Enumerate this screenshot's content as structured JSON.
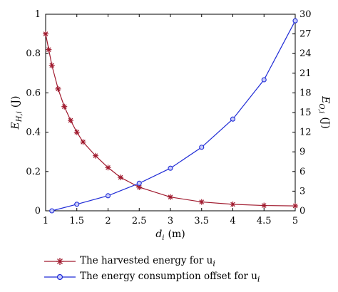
{
  "chart_data": {
    "type": "line",
    "title": "",
    "xlabel": {
      "main": "d",
      "sub": "i",
      "unit": "(m)"
    },
    "ylabel_left": {
      "main": "E",
      "sub": "H,i",
      "unit": "(J)"
    },
    "ylabel_right": {
      "main": "E",
      "sub": "O,i",
      "unit": "(J)"
    },
    "xlim": [
      1,
      5
    ],
    "ylim_left": [
      0,
      1
    ],
    "ylim_right": [
      0,
      30
    ],
    "x_ticks": [
      "1",
      "1.5",
      "2",
      "2.5",
      "3",
      "3.5",
      "4",
      "4.5",
      "5"
    ],
    "y_left_ticks": [
      "0",
      "0.2",
      "0.4",
      "0.6",
      "0.8",
      "1"
    ],
    "y_right_ticks": [
      "0",
      "3",
      "6",
      "9",
      "12",
      "15",
      "18",
      "21",
      "24",
      "27",
      "30"
    ],
    "grid": false,
    "legend_position": "below",
    "series": [
      {
        "name": "The harvested energy for u",
        "name_sub": "i",
        "axis": "left",
        "marker": "star",
        "color": "#a01a2e",
        "x": [
          1.0,
          1.05,
          1.1,
          1.2,
          1.3,
          1.4,
          1.5,
          1.6,
          1.8,
          2.0,
          2.2,
          2.5,
          3.0,
          3.5,
          4.0,
          4.5,
          5.0
        ],
        "y": [
          0.9,
          0.82,
          0.74,
          0.62,
          0.53,
          0.46,
          0.4,
          0.35,
          0.28,
          0.22,
          0.17,
          0.12,
          0.07,
          0.045,
          0.033,
          0.027,
          0.025
        ]
      },
      {
        "name": "The energy consumption offset for u",
        "name_sub": "i",
        "axis": "right",
        "marker": "circle",
        "color": "#1f2bd6",
        "x": [
          1.1,
          1.5,
          2.0,
          2.5,
          3.0,
          3.5,
          4.0,
          4.5,
          5.0
        ],
        "y": [
          0.0,
          1.0,
          2.3,
          4.2,
          6.5,
          9.7,
          14.0,
          20.0,
          29.0
        ]
      }
    ]
  }
}
